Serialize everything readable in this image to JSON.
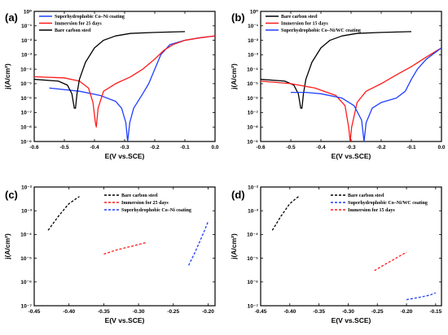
{
  "chart_data": [
    {
      "panel": "(a)",
      "type": "line",
      "xlabel": "E(V vs.SCE)",
      "ylabel": "j(A/cm²)",
      "y_scale": "log",
      "xlim": [
        -0.6,
        0.0
      ],
      "ylim": [
        1e-09,
        1
      ],
      "x_ticks": [
        "-0.6",
        "-0.5",
        "-0.4",
        "-0.3",
        "-0.2",
        "-0.1",
        "0.0"
      ],
      "y_ticks": [
        "10⁻⁹",
        "10⁻⁸",
        "10⁻⁷",
        "10⁻⁶",
        "10⁻⁵",
        "10⁻⁴",
        "10⁻³",
        "10⁻²",
        "10⁻¹",
        "10⁰"
      ],
      "legend_position": "top-right",
      "series": [
        {
          "name": "Superhydrophobic Co–Ni coating",
          "color": "#1f3fff",
          "style": "solid",
          "x": [
            -0.55,
            -0.45,
            -0.38,
            -0.33,
            -0.31,
            -0.296,
            -0.29,
            -0.283,
            -0.27,
            -0.24,
            -0.22,
            -0.2,
            -0.18,
            -0.15,
            -0.1,
            -0.05,
            0.0
          ],
          "y": [
            5e-06,
            3e-06,
            1.5e-06,
            6e-07,
            2e-07,
            2e-08,
            1e-09,
            2e-08,
            2e-07,
            2e-06,
            1e-05,
            0.0001,
            0.001,
            0.005,
            0.01,
            0.015,
            0.02
          ]
        },
        {
          "name": "Immersion for 25 days",
          "color": "#ff1a1a",
          "style": "solid",
          "x": [
            -0.6,
            -0.5,
            -0.45,
            -0.42,
            -0.405,
            -0.397,
            -0.394,
            -0.388,
            -0.37,
            -0.33,
            -0.28,
            -0.24,
            -0.2,
            -0.17,
            -0.14,
            -0.1,
            -0.05,
            0.0
          ],
          "y": [
            3e-05,
            2.5e-05,
            1.5e-05,
            5e-06,
            5e-07,
            2e-08,
            1e-08,
            2e-07,
            3e-06,
            1e-05,
            3e-05,
            0.0001,
            0.0005,
            0.002,
            0.005,
            0.01,
            0.015,
            0.02
          ]
        },
        {
          "name": "Bare carbon steel",
          "color": "#000000",
          "style": "solid",
          "x": [
            -0.6,
            -0.52,
            -0.49,
            -0.475,
            -0.467,
            -0.463,
            -0.458,
            -0.45,
            -0.43,
            -0.4,
            -0.37,
            -0.33,
            -0.28,
            -0.2,
            -0.1
          ],
          "y": [
            2e-05,
            1.5e-05,
            8e-06,
            2e-06,
            2e-07,
            2e-07,
            2e-06,
            2e-05,
            0.0003,
            0.003,
            0.01,
            0.02,
            0.03,
            0.035,
            0.04
          ]
        }
      ]
    },
    {
      "panel": "(b)",
      "type": "line",
      "xlabel": "E(V vs.SCE)",
      "ylabel": "j(A/cm²)",
      "y_scale": "log",
      "xlim": [
        -0.6,
        0.0
      ],
      "ylim": [
        1e-09,
        1
      ],
      "x_ticks": [
        "-0.6",
        "-0.5",
        "-0.4",
        "-0.3",
        "-0.2",
        "-0.1",
        "0.0"
      ],
      "y_ticks": [
        "10⁻⁹",
        "10⁻⁸",
        "10⁻⁷",
        "10⁻⁶",
        "10⁻⁵",
        "10⁻⁴",
        "10⁻³",
        "10⁻²",
        "10⁻¹",
        "10⁰"
      ],
      "legend_position": "top-right",
      "series": [
        {
          "name": "Bare carbon steel",
          "color": "#000000",
          "style": "solid",
          "x": [
            -0.6,
            -0.52,
            -0.49,
            -0.475,
            -0.467,
            -0.463,
            -0.458,
            -0.45,
            -0.43,
            -0.4,
            -0.37,
            -0.33,
            -0.28,
            -0.2,
            -0.1
          ],
          "y": [
            2e-05,
            1.5e-05,
            8e-06,
            2e-06,
            2e-07,
            2e-07,
            2e-06,
            2e-05,
            0.0003,
            0.003,
            0.01,
            0.02,
            0.03,
            0.035,
            0.04
          ]
        },
        {
          "name": "Immersion for 15 days",
          "color": "#ff1a1a",
          "style": "solid",
          "x": [
            -0.6,
            -0.5,
            -0.42,
            -0.35,
            -0.32,
            -0.308,
            -0.303,
            -0.298,
            -0.28,
            -0.25,
            -0.2,
            -0.15,
            -0.1,
            -0.05,
            0.0
          ],
          "y": [
            1.5e-05,
            1e-05,
            5e-06,
            1.5e-06,
            3e-07,
            1e-08,
            1e-09,
            1e-08,
            5e-07,
            3e-06,
            1e-05,
            4e-05,
            0.00015,
            0.0007,
            0.003
          ]
        },
        {
          "name": "Superhydrophobic Co–Ni/WC coating",
          "color": "#1f3fff",
          "style": "solid",
          "x": [
            -0.5,
            -0.45,
            -0.4,
            -0.33,
            -0.29,
            -0.265,
            -0.257,
            -0.25,
            -0.23,
            -0.2,
            -0.15,
            -0.12,
            -0.1,
            -0.08,
            -0.05,
            0.0
          ],
          "y": [
            2.5e-06,
            2.5e-06,
            2e-06,
            1e-06,
            3e-07,
            3e-08,
            1e-09,
            2e-08,
            2e-07,
            5e-07,
            1e-06,
            3e-06,
            2e-05,
            0.0001,
            0.0005,
            0.003
          ]
        }
      ]
    },
    {
      "panel": "(c)",
      "type": "line",
      "xlabel": "E(V vs.SCE)",
      "ylabel": "j(A/cm²)",
      "y_scale": "log",
      "xlim": [
        -0.45,
        -0.19
      ],
      "ylim": [
        1e-07,
        0.01
      ],
      "x_ticks": [
        "-0.45",
        "-0.40",
        "-0.35",
        "-0.30",
        "-0.25",
        "-0.20"
      ],
      "y_ticks": [
        "10⁻⁷",
        "10⁻⁶",
        "10⁻⁵",
        "10⁻⁴",
        "10⁻³",
        "10⁻²"
      ],
      "legend_position": "top-right",
      "series": [
        {
          "name": "Bare carbon steel",
          "color": "#000000",
          "style": "dashed",
          "x": [
            -0.43,
            -0.415,
            -0.4,
            -0.385
          ],
          "y": [
            0.00015,
            0.0006,
            0.002,
            0.004
          ]
        },
        {
          "name": "Immersion for 25 days",
          "color": "#ff1a1a",
          "style": "dashed",
          "x": [
            -0.35,
            -0.33,
            -0.31,
            -0.29
          ],
          "y": [
            1.5e-05,
            2.3e-05,
            3.2e-05,
            4.5e-05
          ]
        },
        {
          "name": "Superhydrophobic Co–Ni coating",
          "color": "#1f3fff",
          "style": "dashed",
          "x": [
            -0.228,
            -0.22,
            -0.212,
            -0.205,
            -0.2
          ],
          "y": [
            5e-06,
            1.5e-05,
            5e-05,
            0.00015,
            0.00035
          ]
        }
      ]
    },
    {
      "panel": "(d)",
      "type": "line",
      "xlabel": "E(V vs.SCE)",
      "ylabel": "j(A/cm²)",
      "y_scale": "log",
      "xlim": [
        -0.45,
        -0.14
      ],
      "ylim": [
        1e-07,
        0.01
      ],
      "x_ticks": [
        "-0.45",
        "-0.40",
        "-0.35",
        "-0.30",
        "-0.25",
        "-0.20",
        "-0.15"
      ],
      "y_ticks": [
        "10⁻⁷",
        "10⁻⁶",
        "10⁻⁵",
        "10⁻⁴",
        "10⁻³",
        "10⁻²"
      ],
      "legend_position": "top-right",
      "series": [
        {
          "name": "Bare carbon steel",
          "color": "#000000",
          "style": "dashed",
          "x": [
            -0.43,
            -0.415,
            -0.4,
            -0.385
          ],
          "y": [
            0.00015,
            0.0006,
            0.002,
            0.004
          ]
        },
        {
          "name": "Superhydrophobic Co–Ni/WC coating",
          "color": "#1f3fff",
          "style": "dashed",
          "x": [
            -0.2,
            -0.18,
            -0.16,
            -0.15
          ],
          "y": [
            1.8e-07,
            2.2e-07,
            2.8e-07,
            3.5e-07
          ]
        },
        {
          "name": "Immersion for 15 days",
          "color": "#ff1a1a",
          "style": "dashed",
          "x": [
            -0.255,
            -0.24,
            -0.225,
            -0.2
          ],
          "y": [
            3e-06,
            5e-06,
            8e-06,
            1.8e-05
          ]
        }
      ]
    }
  ]
}
